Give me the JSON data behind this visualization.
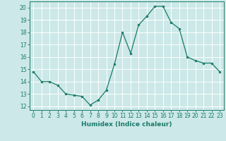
{
  "x": [
    0,
    1,
    2,
    3,
    4,
    5,
    6,
    7,
    8,
    9,
    10,
    11,
    12,
    13,
    14,
    15,
    16,
    17,
    18,
    19,
    20,
    21,
    22,
    23
  ],
  "y": [
    14.8,
    14.0,
    14.0,
    13.7,
    13.0,
    12.9,
    12.8,
    12.1,
    12.5,
    13.3,
    15.4,
    18.0,
    16.3,
    18.6,
    19.3,
    20.1,
    20.1,
    18.8,
    18.3,
    16.0,
    15.7,
    15.5,
    15.5,
    14.8
  ],
  "line_color": "#1a7a6a",
  "marker": "o",
  "marker_size": 2.0,
  "bg_color": "#cce8e8",
  "grid_color": "#ffffff",
  "xlabel": "Humidex (Indice chaleur)",
  "xlim": [
    -0.5,
    23.5
  ],
  "ylim": [
    11.7,
    20.5
  ],
  "yticks": [
    12,
    13,
    14,
    15,
    16,
    17,
    18,
    19,
    20
  ],
  "xticks": [
    0,
    1,
    2,
    3,
    4,
    5,
    6,
    7,
    8,
    9,
    10,
    11,
    12,
    13,
    14,
    15,
    16,
    17,
    18,
    19,
    20,
    21,
    22,
    23
  ],
  "tick_fontsize": 5.5,
  "xlabel_fontsize": 6.5,
  "linewidth": 0.9
}
